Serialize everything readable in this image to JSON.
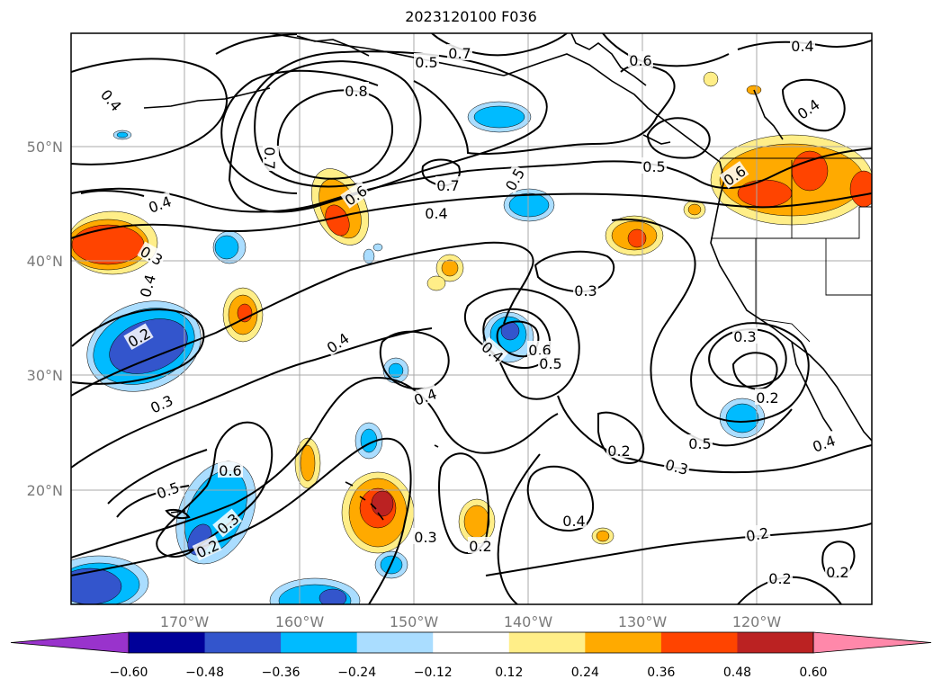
{
  "title": "2023120100 F036",
  "lon_labels": [
    "170°W",
    "160°W",
    "150°W",
    "140°W",
    "130°W",
    "120°W"
  ],
  "lat_labels": [
    "50°N",
    "40°N",
    "30°N",
    "20°N"
  ],
  "colorbar": {
    "colors": [
      "#9933cc",
      "#000099",
      "#3355cc",
      "#00bbff",
      "#aaddff",
      "#ffffff",
      "#ffee88",
      "#ffaa00",
      "#ff4400",
      "#bb2222",
      "#ff88aa"
    ],
    "ticks": [
      "−0.60",
      "−0.48",
      "−0.36",
      "−0.24",
      "−0.12",
      "0.12",
      "0.24",
      "0.36",
      "0.48",
      "0.60"
    ]
  },
  "contour_labels": [
    {
      "text": "0.4"
    },
    {
      "text": "0.5"
    },
    {
      "text": "0.7"
    },
    {
      "text": "0.6"
    },
    {
      "text": "0.8"
    },
    {
      "text": "0.7"
    },
    {
      "text": "0.4"
    },
    {
      "text": "0.4"
    },
    {
      "text": "0.3"
    },
    {
      "text": "0.4"
    },
    {
      "text": "0.6"
    },
    {
      "text": "0.7"
    },
    {
      "text": "0.5"
    },
    {
      "text": "0.4"
    },
    {
      "text": "0.5"
    },
    {
      "text": "0.6"
    },
    {
      "text": "0.4"
    },
    {
      "text": "0.3"
    },
    {
      "text": "0.2"
    },
    {
      "text": "0.4"
    },
    {
      "text": "0.3"
    },
    {
      "text": "0.4"
    },
    {
      "text": "0.4"
    },
    {
      "text": "0.6"
    },
    {
      "text": "0.5"
    },
    {
      "text": "0.3"
    },
    {
      "text": "0.2"
    },
    {
      "text": "0.5"
    },
    {
      "text": "0.6"
    },
    {
      "text": "0.3"
    },
    {
      "text": "0.2"
    },
    {
      "text": "0.2"
    },
    {
      "text": "0.3"
    },
    {
      "text": "0.2"
    },
    {
      "text": "0.4"
    },
    {
      "text": "0.2"
    },
    {
      "text": "0.2"
    },
    {
      "text": "0.2"
    },
    {
      "text": "0.4"
    },
    {
      "text": "0.5"
    },
    {
      "text": "0.3"
    }
  ]
}
